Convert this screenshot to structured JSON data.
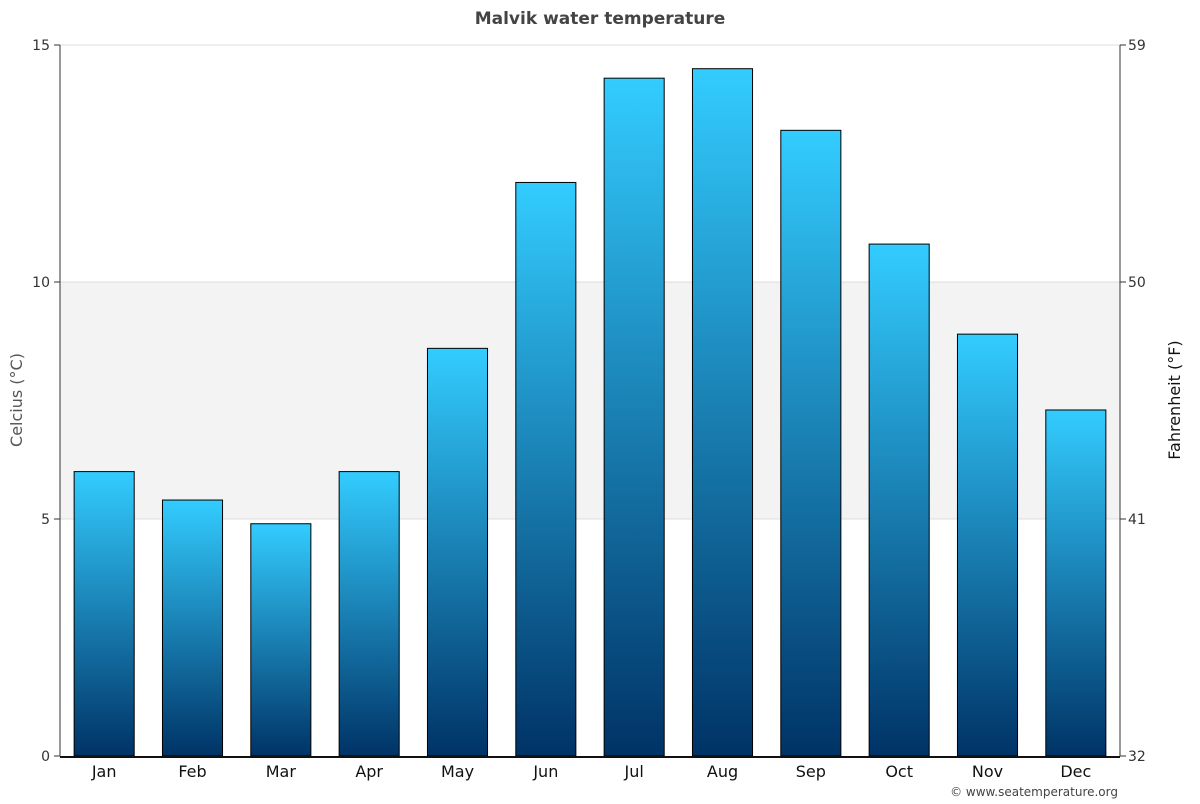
{
  "chart_data": {
    "type": "bar",
    "title": "Malvik water temperature",
    "categories": [
      "Jan",
      "Feb",
      "Mar",
      "Apr",
      "May",
      "Jun",
      "Jul",
      "Aug",
      "Sep",
      "Oct",
      "Nov",
      "Dec"
    ],
    "values": [
      6.0,
      5.4,
      4.9,
      6.0,
      8.6,
      12.1,
      14.3,
      14.5,
      13.2,
      10.8,
      8.9,
      7.3
    ],
    "ylabel": "Celcius (°C)",
    "ylabel_right": "Fahrenheit (°F)",
    "ylim": [
      0,
      15
    ],
    "yticks": [
      "0",
      "5",
      "10",
      "15"
    ],
    "yticks_right": [
      "32",
      "41",
      "50",
      "59"
    ],
    "grid": true,
    "band_shaded": [
      5,
      10
    ],
    "colors": {
      "bar_top": "#33ccff",
      "bar_bottom": "#003366",
      "band": "#f3f3f3",
      "grid": "#dddddd"
    }
  },
  "credit": "© www.seatemperature.org"
}
